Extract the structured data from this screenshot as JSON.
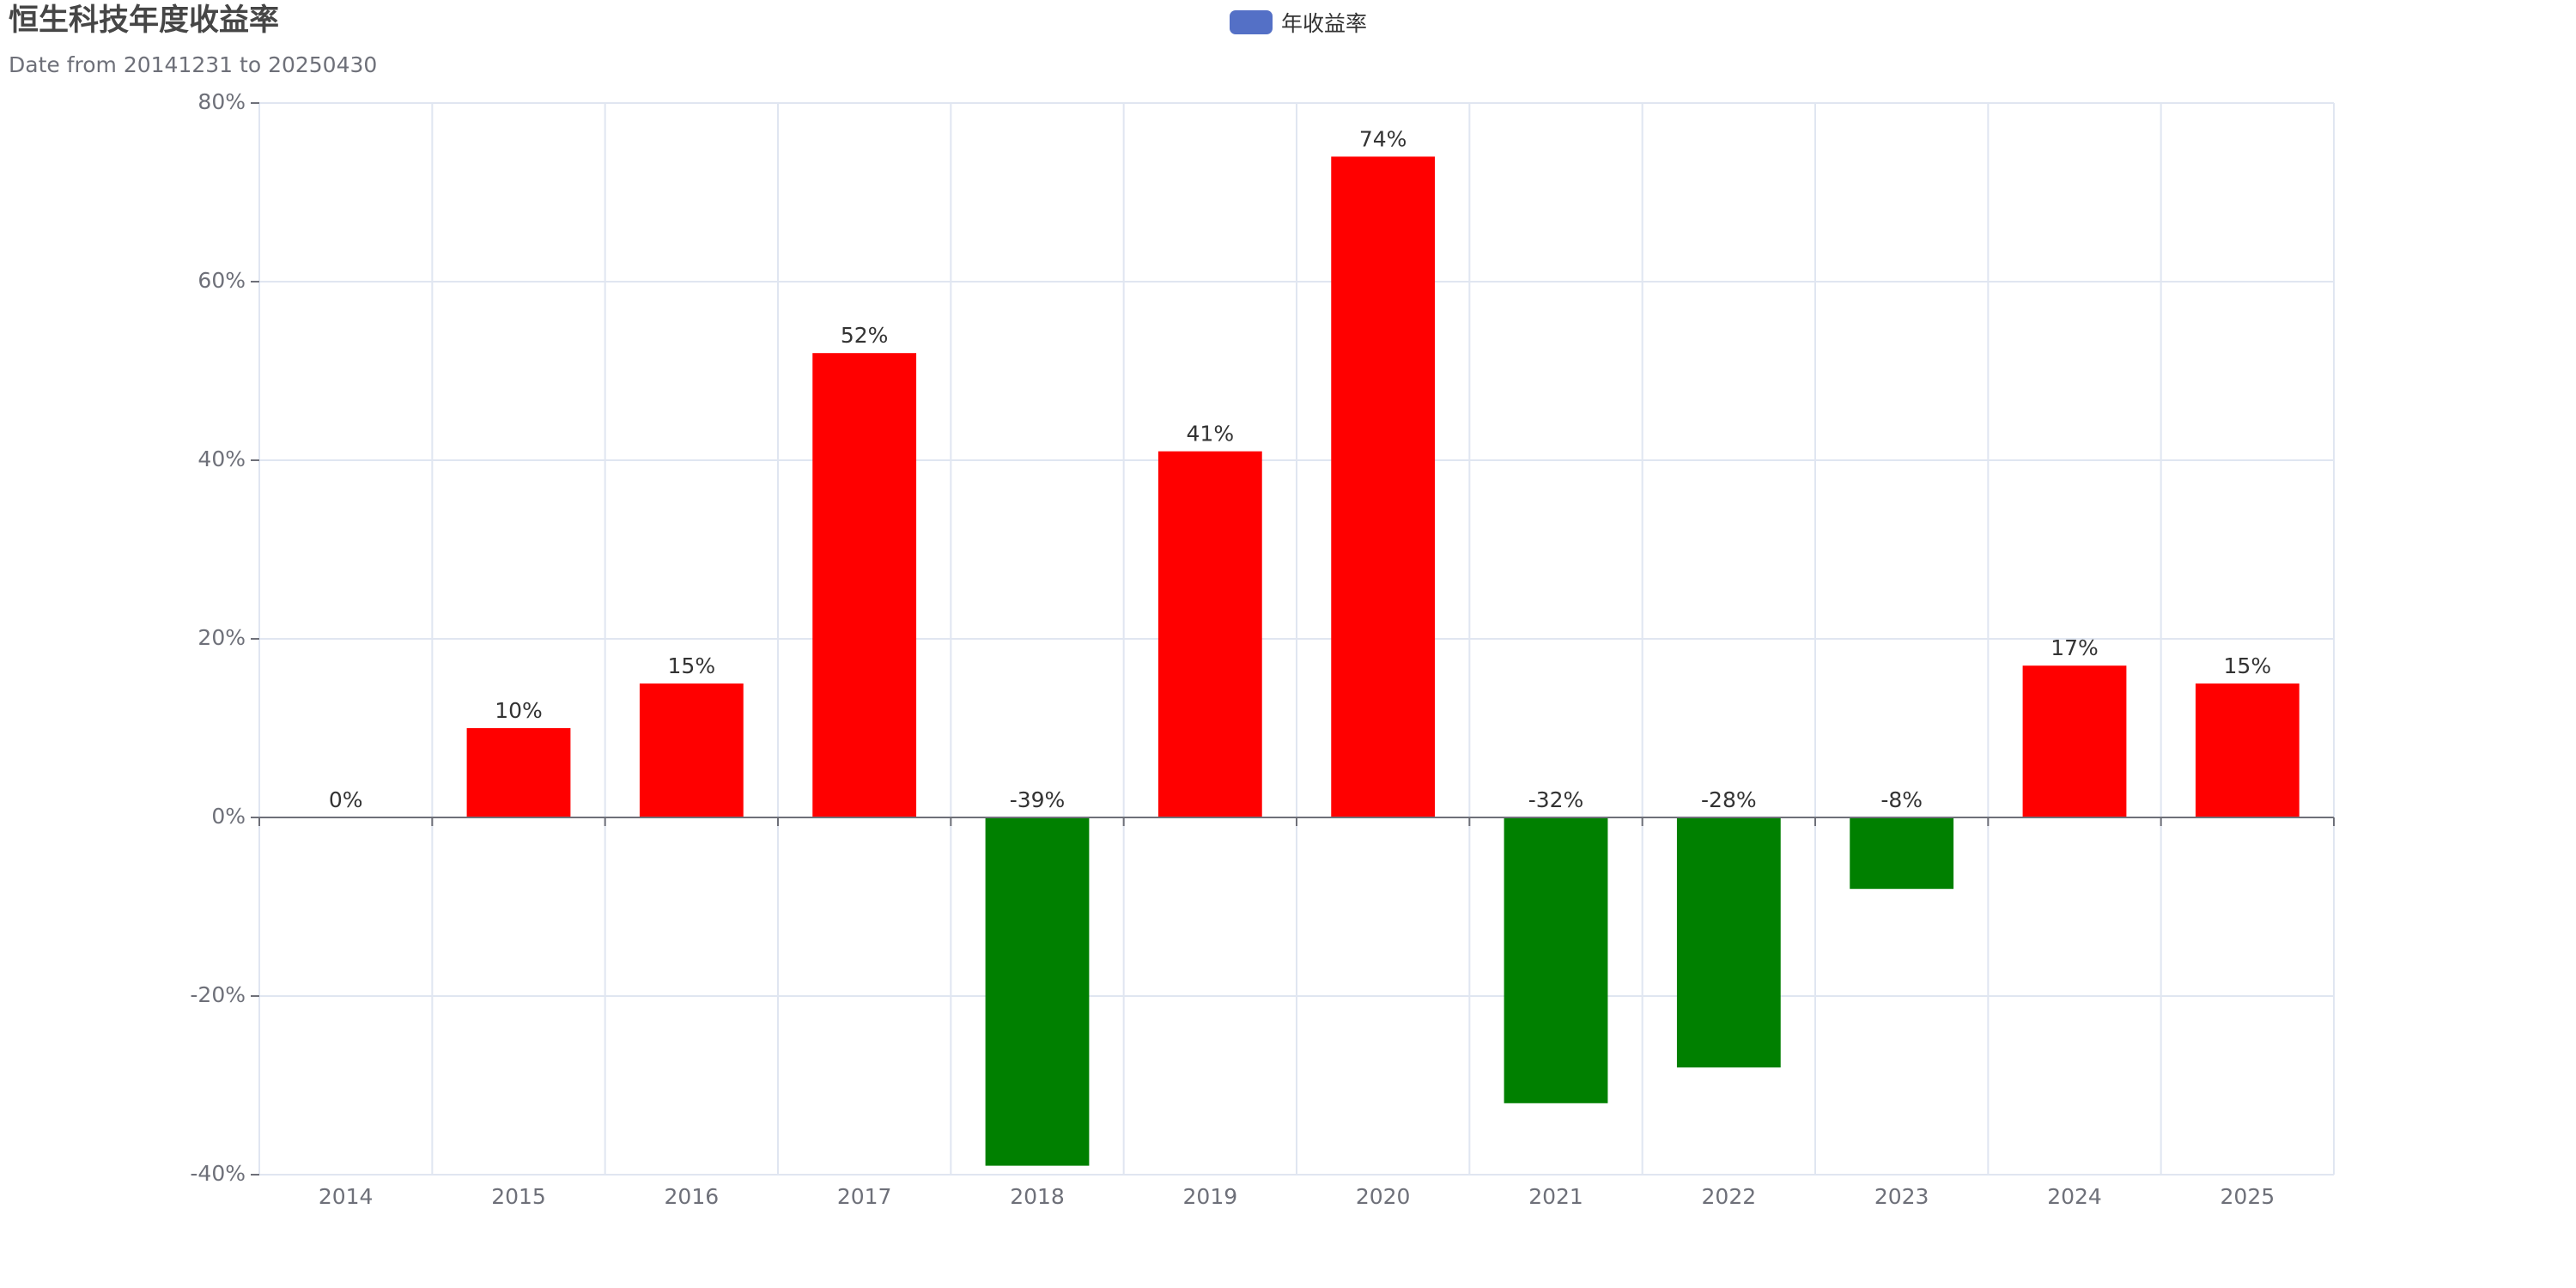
{
  "chart_data": {
    "type": "bar",
    "title": "恒生科技年度收益率",
    "subtitle": "Date from 20141231 to 20250430",
    "legend": {
      "label": "年收益率",
      "color": "#5470c6",
      "placement": "top-center"
    },
    "categories": [
      "2014",
      "2015",
      "2016",
      "2017",
      "2018",
      "2019",
      "2020",
      "2021",
      "2022",
      "2023",
      "2024",
      "2025"
    ],
    "series": [
      {
        "name": "年收益率",
        "values": [
          0,
          10,
          15,
          52,
          -39,
          41,
          74,
          -32,
          -28,
          -8,
          17,
          15
        ],
        "labels": [
          "0%",
          "10%",
          "15%",
          "52%",
          "-39%",
          "41%",
          "74%",
          "-32%",
          "-28%",
          "-8%",
          "17%",
          "15%"
        ]
      }
    ],
    "ylim": [
      -40,
      80
    ],
    "yticks": [
      -40,
      -20,
      0,
      20,
      40,
      60,
      80
    ],
    "ytick_labels": [
      "-40%",
      "-20%",
      "0%",
      "20%",
      "40%",
      "60%",
      "80%"
    ],
    "grid": true,
    "colors": {
      "positive": "#ff0000",
      "negative": "#008000",
      "grid": "#e0e6f1",
      "axis": "#6e7079"
    },
    "xlabel": "",
    "ylabel": ""
  }
}
